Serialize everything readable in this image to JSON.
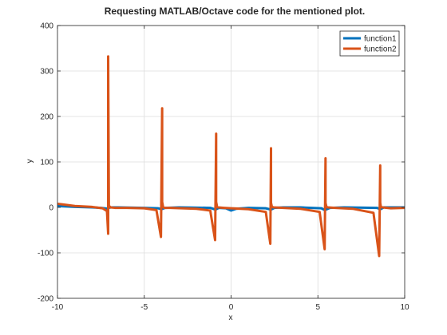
{
  "chart_data": {
    "type": "line",
    "title": "Requesting MATLAB/Octave code for the mentioned plot.",
    "xlabel": "x",
    "ylabel": "y",
    "xlim": [
      -10,
      10
    ],
    "ylim": [
      -200,
      400
    ],
    "xticks": [
      -10,
      -5,
      0,
      5,
      10
    ],
    "yticks": [
      -200,
      -100,
      0,
      100,
      200,
      300,
      400
    ],
    "grid": true,
    "legend_position": "top-right",
    "series": [
      {
        "name": "function1",
        "color": "#0072bd",
        "x": [
          -10,
          -9,
          -8,
          -7.5,
          -7.1,
          -7.05,
          -6.9,
          -6.5,
          -5,
          -4.2,
          -4.0,
          -3.8,
          -3,
          -1.2,
          -0.9,
          -0.7,
          -0.3,
          0,
          0.3,
          1,
          2.0,
          2.3,
          2.5,
          3,
          4,
          5.2,
          5.4,
          5.7,
          6.5,
          8.4,
          8.6,
          8.8,
          9.5,
          10
        ],
        "y": [
          3,
          1,
          0,
          -1,
          -3,
          -1,
          0,
          0,
          -1,
          -2,
          -4,
          -1,
          0,
          -1,
          -5,
          -1,
          -2,
          -7,
          -3,
          -1,
          -2,
          -5,
          -1,
          0,
          0,
          -2,
          -6,
          -1,
          0,
          -1,
          -4,
          0,
          0,
          0
        ]
      },
      {
        "name": "function2",
        "color": "#d95319",
        "x": [
          -10,
          -9,
          -8,
          -7.4,
          -7.15,
          -7.08,
          -7.08,
          -7.04,
          -7.04,
          -6.95,
          -6.7,
          -6,
          -5,
          -4.3,
          -4.04,
          -3.97,
          -3.97,
          -3.93,
          -3.93,
          -3.85,
          -3.5,
          -2,
          -1.2,
          -0.92,
          -0.86,
          -0.86,
          -0.82,
          -0.82,
          -0.75,
          -0.4,
          0,
          1,
          2.0,
          2.26,
          2.3,
          2.3,
          2.34,
          2.34,
          2.45,
          3,
          4,
          5.1,
          5.39,
          5.44,
          5.44,
          5.48,
          5.48,
          5.58,
          6,
          7,
          8.2,
          8.53,
          8.59,
          8.59,
          8.62,
          8.62,
          8.72,
          9.2,
          10
        ],
        "y": [
          8,
          3,
          1,
          -2,
          -8,
          -58,
          332,
          12,
          4,
          0,
          -1,
          -1,
          -2,
          -6,
          -65,
          218,
          12,
          4,
          1,
          -1,
          -1,
          -3,
          -7,
          -72,
          162,
          12,
          4,
          1,
          0,
          -1,
          -2,
          -4,
          -10,
          -80,
          130,
          10,
          3,
          1,
          0,
          -1,
          -3,
          -10,
          -92,
          108,
          10,
          3,
          1,
          0,
          -1,
          -3,
          -12,
          -107,
          92,
          10,
          3,
          1,
          0,
          -2,
          -1
        ]
      }
    ]
  }
}
